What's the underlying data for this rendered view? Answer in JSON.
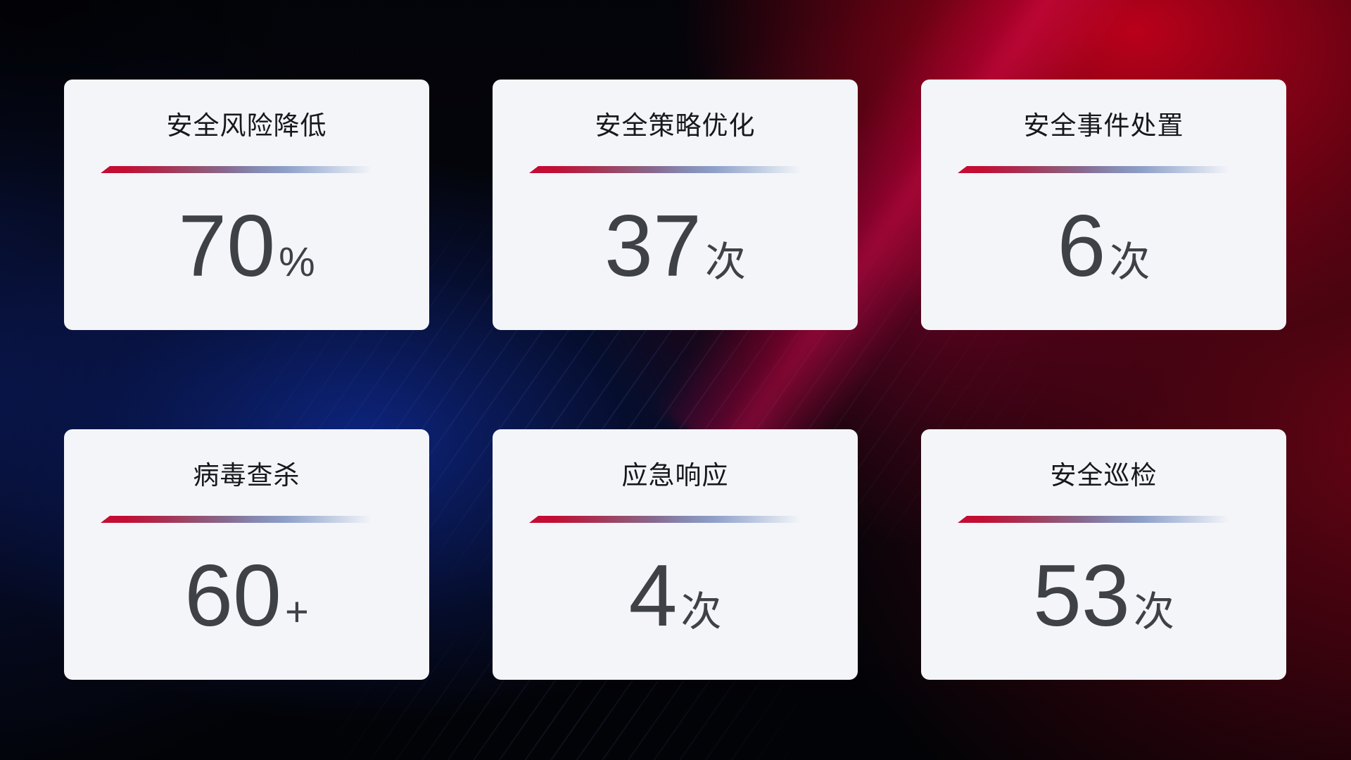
{
  "theme": {
    "bg_base": "#04050b",
    "bg_blue": "#0c2478",
    "bg_red": "#c00020",
    "card_bg": "#f4f5f9",
    "title_color": "#17181c",
    "value_color": "#3e4146",
    "divider_red": "#c30d33",
    "divider_blue": "#8d9fc8"
  },
  "cards": [
    {
      "title": "安全风险降低",
      "value": "70",
      "unit": "%"
    },
    {
      "title": "安全策略优化",
      "value": "37",
      "unit": "次"
    },
    {
      "title": "安全事件处置",
      "value": "6",
      "unit": "次"
    },
    {
      "title": "病毒查杀",
      "value": "60",
      "unit": "+"
    },
    {
      "title": "应急响应",
      "value": "4",
      "unit": "次"
    },
    {
      "title": "安全巡检",
      "value": "53",
      "unit": "次"
    }
  ]
}
